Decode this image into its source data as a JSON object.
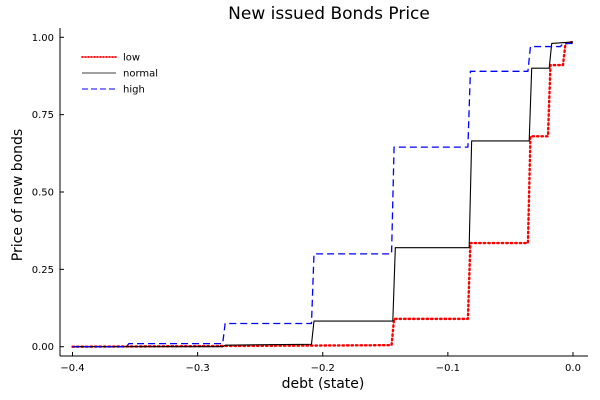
{
  "chart_data": {
    "type": "line",
    "title": "New issued Bonds Price",
    "xlabel": "debt (state)",
    "ylabel": "Price of new bonds",
    "xlim": [
      -0.41,
      0.012
    ],
    "ylim": [
      -0.03,
      1.03
    ],
    "xticks": [
      -0.4,
      -0.3,
      -0.2,
      -0.1,
      0.0
    ],
    "xtick_labels": [
      "−0.4",
      "−0.3",
      "−0.2",
      "−0.1",
      "0.0"
    ],
    "yticks": [
      0.0,
      0.25,
      0.5,
      0.75,
      1.0
    ],
    "ytick_labels": [
      "0.00",
      "0.25",
      "0.50",
      "0.75",
      "1.00"
    ],
    "grid": false,
    "legend_position": "top-left",
    "series": [
      {
        "name": "low",
        "color": "#ff0000",
        "style": "dotted",
        "x": [
          -0.4,
          -0.145,
          -0.143,
          -0.084,
          -0.082,
          -0.036,
          -0.034,
          -0.02,
          -0.018,
          -0.008,
          -0.006,
          0.0
        ],
        "y": [
          0.0,
          0.005,
          0.09,
          0.09,
          0.335,
          0.335,
          0.68,
          0.68,
          0.91,
          0.91,
          0.98,
          0.985
        ]
      },
      {
        "name": "normal",
        "color": "#000000",
        "style": "solid",
        "x": [
          -0.4,
          -0.28,
          -0.278,
          -0.209,
          -0.207,
          -0.144,
          -0.142,
          -0.083,
          -0.081,
          -0.035,
          -0.033,
          -0.019,
          -0.017,
          0.0
        ],
        "y": [
          0.0,
          0.0,
          0.005,
          0.008,
          0.083,
          0.083,
          0.32,
          0.32,
          0.665,
          0.665,
          0.9,
          0.9,
          0.98,
          0.985
        ]
      },
      {
        "name": "high",
        "color": "#0000ff",
        "style": "dashed",
        "x": [
          -0.4,
          -0.357,
          -0.355,
          -0.28,
          -0.278,
          -0.209,
          -0.207,
          -0.145,
          -0.143,
          -0.084,
          -0.082,
          -0.036,
          -0.034,
          -0.01,
          -0.008,
          0.0
        ],
        "y": [
          0.0,
          0.0,
          0.01,
          0.01,
          0.075,
          0.075,
          0.3,
          0.3,
          0.645,
          0.645,
          0.89,
          0.89,
          0.97,
          0.97,
          0.98,
          0.98
        ]
      }
    ]
  }
}
